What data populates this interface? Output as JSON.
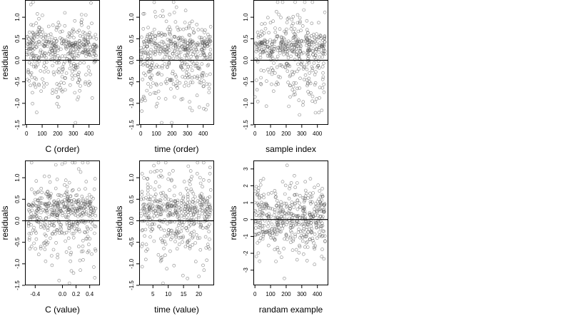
{
  "chart_data": [
    {
      "type": "scatter",
      "xlabel": "C (order)",
      "ylabel": "residuals",
      "xlim": [
        -10,
        470
      ],
      "ylim": [
        -1.5,
        1.4
      ],
      "x_ticks": [
        0,
        100,
        200,
        300,
        400
      ],
      "y_ticks": [
        -1.5,
        -1.0,
        -0.5,
        0.0,
        0.5,
        1.0
      ],
      "y_tick_labels": [
        "-1.5",
        "-1.0",
        "-0.5",
        "0.0",
        "0.5",
        "1.0"
      ],
      "reference_line": 0,
      "x_range": [
        0,
        450
      ],
      "n_points": 450,
      "points": {
        "x_range": [
          0,
          450
        ],
        "n": 450,
        "mean": 0.05,
        "sd": 0.55,
        "upper_band": 0.35
      }
    },
    {
      "type": "scatter",
      "xlabel": "time (order)",
      "ylabel": "residuals",
      "xlim": [
        -10,
        470
      ],
      "ylim": [
        -1.5,
        1.4
      ],
      "x_ticks": [
        0,
        100,
        200,
        300,
        400
      ],
      "y_ticks": [
        -1.5,
        -1.0,
        -0.5,
        0.0,
        0.5,
        1.0
      ],
      "y_tick_labels": [
        "-1.5",
        "-1.0",
        "-0.5",
        "0.0",
        "0.5",
        "1.0"
      ],
      "reference_line": 0,
      "points": {
        "x_range": [
          0,
          450
        ],
        "n": 450,
        "mean": 0.05,
        "sd": 0.55,
        "upper_band": 0.35
      }
    },
    {
      "type": "scatter",
      "xlabel": "sample index",
      "ylabel": "residuals",
      "xlim": [
        -10,
        470
      ],
      "ylim": [
        -1.5,
        1.4
      ],
      "x_ticks": [
        0,
        100,
        200,
        300,
        400
      ],
      "y_ticks": [
        -1.5,
        -1.0,
        -0.5,
        0.0,
        0.5,
        1.0
      ],
      "y_tick_labels": [
        "-1.5",
        "-1.0",
        "-0.5",
        "0.0",
        "0.5",
        "1.0"
      ],
      "reference_line": 0,
      "points": {
        "x_range": [
          0,
          450
        ],
        "n": 450,
        "mean": 0.05,
        "sd": 0.55,
        "upper_band": 0.35
      }
    },
    {
      "type": "scatter",
      "xlabel": "C (value)",
      "ylabel": "residuals",
      "xlim": [
        -0.55,
        0.55
      ],
      "ylim": [
        -1.5,
        1.4
      ],
      "x_ticks": [
        -0.4,
        0.0,
        0.2,
        0.4
      ],
      "x_tick_labels": [
        "-0.4",
        "0.0",
        "0.2",
        "0.4"
      ],
      "y_ticks": [
        -1.5,
        -1.0,
        -0.5,
        0.0,
        0.5,
        1.0
      ],
      "y_tick_labels": [
        "-1.5",
        "-1.0",
        "-0.5",
        "0.0",
        "0.5",
        "1.0"
      ],
      "reference_line": 0,
      "points": {
        "x_range": [
          -0.5,
          0.5
        ],
        "n": 450,
        "mean": 0.05,
        "sd": 0.55,
        "upper_band": 0.35
      }
    },
    {
      "type": "scatter",
      "xlabel": "time (value)",
      "ylabel": "residuals",
      "xlim": [
        0.5,
        25
      ],
      "ylim": [
        -1.5,
        1.4
      ],
      "x_ticks": [
        5,
        10,
        15,
        20
      ],
      "y_ticks": [
        -1.5,
        -1.0,
        -0.5,
        0.0,
        0.5,
        1.0
      ],
      "y_tick_labels": [
        "-1.5",
        "-1.0",
        "-0.5",
        "0.0",
        "0.5",
        "1.0"
      ],
      "reference_line": 0,
      "points": {
        "x_range": [
          1,
          24
        ],
        "n": 450,
        "mean": 0.05,
        "sd": 0.55,
        "upper_band": 0.35
      }
    },
    {
      "type": "scatter",
      "xlabel": "randam example",
      "ylabel": "residuals",
      "xlim": [
        -10,
        470
      ],
      "ylim": [
        -3.9,
        3.5
      ],
      "x_ticks": [
        0,
        100,
        200,
        300,
        400
      ],
      "y_ticks": [
        -3,
        -2,
        -1,
        0,
        1,
        2,
        3
      ],
      "y_tick_labels": [
        "-3",
        "-2",
        "-1",
        "0",
        "1",
        "2",
        "3"
      ],
      "reference_line": 0,
      "points": {
        "x_range": [
          0,
          450
        ],
        "n": 450,
        "mean": 0.0,
        "sd": 1.0,
        "upper_band": 0
      }
    }
  ]
}
